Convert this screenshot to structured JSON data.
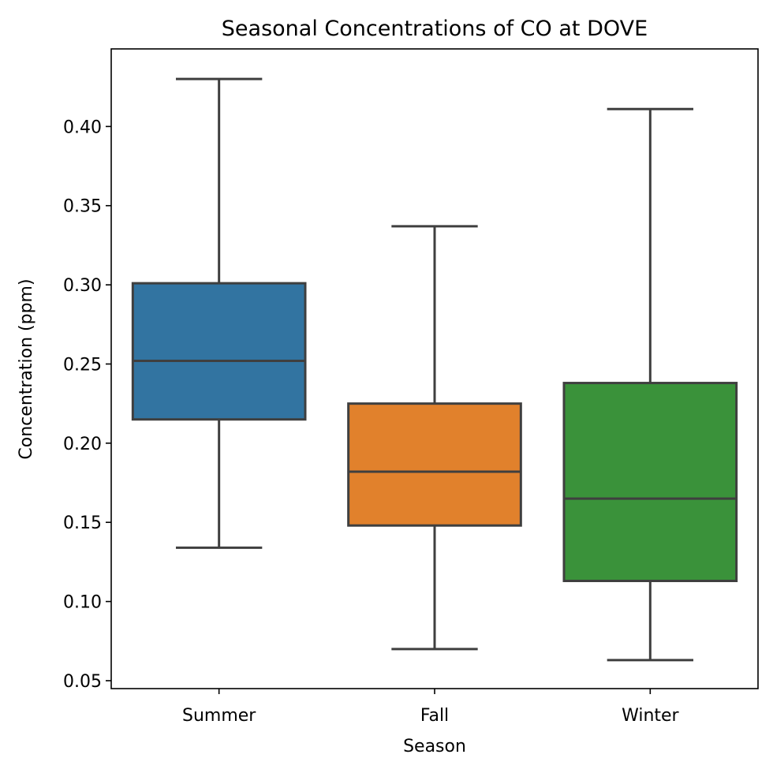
{
  "chart_data": {
    "type": "box",
    "title": "Seasonal Concentrations of CO at DOVE",
    "xlabel": "Season",
    "ylabel": "Concentration (ppm)",
    "ylim": [
      0.045,
      0.449
    ],
    "yticks": [
      0.05,
      0.1,
      0.15,
      0.2,
      0.25,
      0.3,
      0.35,
      0.4
    ],
    "ytick_labels": [
      "0.05",
      "0.10",
      "0.15",
      "0.20",
      "0.25",
      "0.30",
      "0.35",
      "0.40"
    ],
    "categories": [
      "Summer",
      "Fall",
      "Winter"
    ],
    "series": [
      {
        "category": "Summer",
        "whisker_low": 0.134,
        "q1": 0.215,
        "median": 0.252,
        "q3": 0.301,
        "whisker_high": 0.43,
        "color": "#3274a1"
      },
      {
        "category": "Fall",
        "whisker_low": 0.07,
        "q1": 0.148,
        "median": 0.182,
        "q3": 0.225,
        "whisker_high": 0.337,
        "color": "#e1812c"
      },
      {
        "category": "Winter",
        "whisker_low": 0.063,
        "q1": 0.113,
        "median": 0.165,
        "q3": 0.238,
        "whisker_high": 0.411,
        "color": "#3a923a"
      }
    ],
    "grid": false,
    "legend": "none"
  }
}
